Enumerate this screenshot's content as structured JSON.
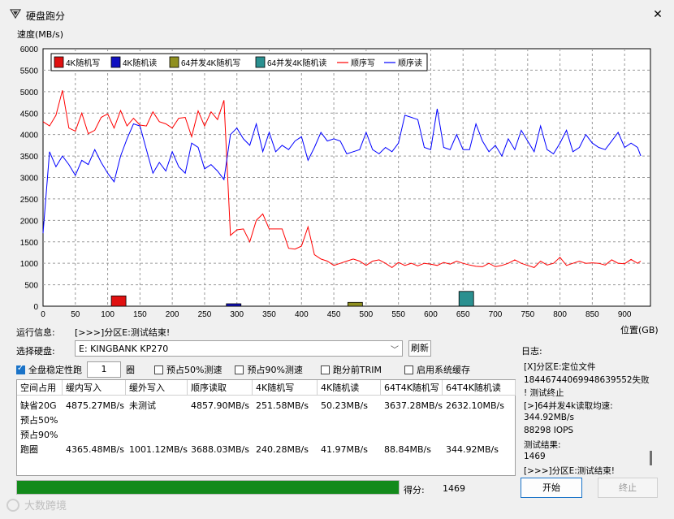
{
  "window": {
    "title": "硬盘跑分",
    "close": "✕"
  },
  "chart_data": {
    "type": "line",
    "ylabel": "速度(MB/s)",
    "xlabel": "位置(GB)",
    "ylim": [
      0,
      6000
    ],
    "xlim": [
      0,
      940
    ],
    "yticks": [
      0,
      500,
      1000,
      1500,
      2000,
      2500,
      3000,
      3500,
      4000,
      4500,
      5000,
      5500,
      6000
    ],
    "xticks": [
      0,
      50,
      100,
      150,
      200,
      250,
      300,
      350,
      400,
      450,
      500,
      550,
      600,
      650,
      700,
      750,
      800,
      850,
      900
    ],
    "grid": true,
    "legend_position": "top-left",
    "legend": [
      "4K随机写",
      "4K随机读",
      "64并发4K随机写",
      "64并发4K随机读",
      "顺序写",
      "顺序读"
    ],
    "colors": {
      "seq_write": "#ff0000",
      "seq_read": "#0000ff",
      "k4_write": "#e01010",
      "k4_read": "#1010c0",
      "k64_write": "#909020",
      "k64_read": "#2a9090"
    },
    "bars": [
      {
        "name": "4K随机写",
        "x": 117,
        "value": 240.28
      },
      {
        "name": "4K随机读",
        "x": 295,
        "value": 41.97
      },
      {
        "name": "64并发4K随机写",
        "x": 483,
        "value": 88.84
      },
      {
        "name": "64并发4K随机读",
        "x": 655,
        "value": 344.92
      }
    ],
    "series": [
      {
        "name": "顺序写",
        "x": [
          0,
          10,
          20,
          30,
          40,
          50,
          60,
          70,
          80,
          90,
          100,
          110,
          120,
          130,
          140,
          150,
          160,
          170,
          180,
          190,
          200,
          210,
          220,
          230,
          240,
          250,
          260,
          270,
          280,
          290,
          300,
          310,
          320,
          330,
          340,
          350,
          360,
          370,
          380,
          390,
          400,
          410,
          420,
          430,
          440,
          450,
          460,
          470,
          480,
          490,
          500,
          510,
          520,
          530,
          540,
          550,
          560,
          570,
          580,
          590,
          600,
          610,
          620,
          630,
          640,
          650,
          660,
          670,
          680,
          690,
          700,
          710,
          720,
          730,
          740,
          750,
          760,
          770,
          780,
          790,
          800,
          810,
          820,
          830,
          840,
          850,
          860,
          870,
          880,
          890,
          900,
          910,
          920,
          925
        ],
        "y": [
          4300,
          4200,
          4450,
          5030,
          4150,
          4080,
          4500,
          4020,
          4100,
          4400,
          4480,
          4150,
          4560,
          4200,
          4380,
          4220,
          4200,
          4530,
          4300,
          4250,
          4150,
          4380,
          4400,
          3950,
          4550,
          4200,
          4530,
          4350,
          4800,
          1650,
          1780,
          1800,
          1500,
          2000,
          2150,
          1800,
          1800,
          1800,
          1350,
          1330,
          1400,
          1850,
          1200,
          1100,
          1050,
          950,
          1000,
          1050,
          1100,
          1050,
          950,
          1050,
          1080,
          1000,
          900,
          1020,
          950,
          1000,
          940,
          1000,
          980,
          950,
          1020,
          980,
          1050,
          1000,
          960,
          930,
          920,
          1000,
          920,
          950,
          1000,
          1080,
          1000,
          950,
          900,
          1050,
          960,
          1000,
          1140,
          950,
          1000,
          1050,
          1000,
          1010,
          1000,
          960,
          1080,
          1000,
          990,
          1090,
          1000,
          1050
        ]
      },
      {
        "name": "顺序读",
        "x": [
          0,
          10,
          20,
          30,
          40,
          50,
          60,
          70,
          80,
          90,
          100,
          110,
          120,
          130,
          140,
          150,
          160,
          170,
          180,
          190,
          200,
          210,
          220,
          230,
          240,
          250,
          260,
          270,
          280,
          290,
          300,
          310,
          320,
          330,
          340,
          350,
          360,
          370,
          380,
          390,
          400,
          410,
          420,
          430,
          440,
          450,
          460,
          470,
          480,
          490,
          500,
          510,
          520,
          530,
          540,
          550,
          560,
          570,
          580,
          590,
          600,
          610,
          620,
          630,
          640,
          650,
          660,
          670,
          680,
          690,
          700,
          710,
          720,
          730,
          740,
          750,
          760,
          770,
          780,
          790,
          800,
          810,
          820,
          830,
          840,
          850,
          860,
          870,
          880,
          890,
          900,
          910,
          920,
          925
        ],
        "y": [
          1700,
          3600,
          3250,
          3500,
          3300,
          3050,
          3400,
          3300,
          3650,
          3350,
          3100,
          2900,
          3500,
          3900,
          4250,
          4200,
          3650,
          3100,
          3350,
          3150,
          3600,
          3250,
          3100,
          3800,
          3700,
          3200,
          3300,
          3150,
          2950,
          4000,
          4150,
          3900,
          3750,
          4250,
          3600,
          4050,
          3600,
          3750,
          3650,
          3850,
          3950,
          3400,
          3700,
          4050,
          3850,
          3900,
          3850,
          3550,
          3600,
          3650,
          4050,
          3650,
          3550,
          3700,
          3600,
          3800,
          4450,
          4400,
          4350,
          3700,
          3650,
          4600,
          3700,
          3650,
          4000,
          3650,
          3650,
          4250,
          3850,
          3600,
          3750,
          3500,
          3900,
          3650,
          4100,
          3850,
          3600,
          4200,
          3650,
          3550,
          3800,
          4100,
          3600,
          3700,
          4000,
          3800,
          3700,
          3650,
          3850,
          4050,
          3700,
          3800,
          3700,
          3500
        ]
      }
    ]
  },
  "run_info": {
    "label": "运行信息:",
    "value": "[>>>]分区E:测试结束!"
  },
  "disk": {
    "label": "选择硬盘:",
    "value": "E: KINGBANK KP270",
    "refresh": "刷新"
  },
  "options": {
    "stable_label": "全盘稳定性跑",
    "loops": "1",
    "loops_unit": "圈",
    "opt1": "预占50%测速",
    "opt2": "预占90%测速",
    "opt3": "跑分前TRIM",
    "opt4": "启用系统缓存"
  },
  "results": {
    "headers": [
      "空间占用",
      "缓内写入",
      "缓外写入",
      "顺序读取",
      "4K随机写",
      "4K随机读",
      "64T4K随机写",
      "64T4K随机读"
    ],
    "rows": [
      [
        "缺省20G",
        "4875.27MB/s",
        "未测试",
        "4857.90MB/s",
        "251.58MB/s",
        "50.23MB/s",
        "3637.28MB/s",
        "2632.10MB/s"
      ],
      [
        "预占50%",
        "",
        "",
        "",
        "",
        "",
        "",
        ""
      ],
      [
        "预占90%",
        "",
        "",
        "",
        "",
        "",
        "",
        ""
      ],
      [
        "跑圈",
        "4365.48MB/s",
        "1001.12MB/s",
        "3688.03MB/s",
        "240.28MB/s",
        "41.97MB/s",
        "88.84MB/s",
        "344.92MB/s"
      ]
    ]
  },
  "log": {
    "label": "日志:",
    "lines": [
      "[X]分区E:定位文件",
      "18446744069948639552失败",
      "! 测试终止",
      "[>]64并发4k读取均速:",
      "344.92MB/s",
      "88298 IOPS",
      "测试结果:",
      "1469",
      "[>>>]分区E:测试结束!"
    ]
  },
  "progress": {
    "value": 1.0
  },
  "score": {
    "label": "得分:",
    "value": "1469"
  },
  "buttons": {
    "start": "开始",
    "stop": "终止"
  },
  "watermark": "大数跨境"
}
